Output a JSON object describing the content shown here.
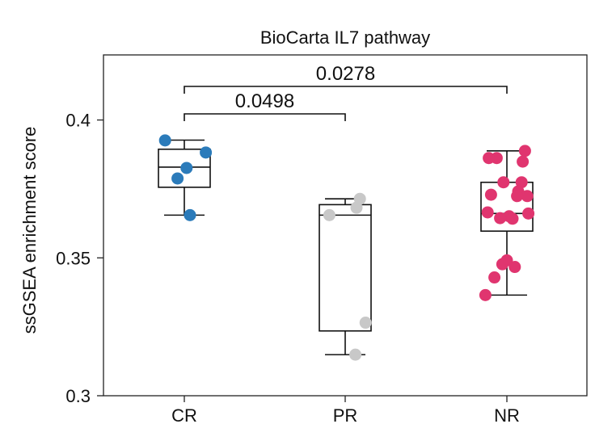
{
  "chart_data": {
    "type": "box",
    "title": "BioCarta IL7 pathway",
    "xlabel": "",
    "ylabel": "ssGSEA enrichment score",
    "ylim": [
      0.3,
      0.4236
    ],
    "yticks": [
      {
        "value": 0.3,
        "label": "0.3"
      },
      {
        "value": 0.35,
        "label": "0.35"
      },
      {
        "value": 0.4,
        "label": "0.4"
      }
    ],
    "categories": [
      "CR",
      "PR",
      "NR"
    ],
    "grid": false,
    "legend": "none",
    "groups": [
      {
        "name": "CR",
        "color": "#2b7bba",
        "box": {
          "whisker_low": 0.3655,
          "q1": 0.3756,
          "median": 0.3829,
          "q3": 0.3894,
          "whisker_high": 0.3927
        },
        "points": [
          0.3926,
          0.3882,
          0.3826,
          0.3788,
          0.3655
        ]
      },
      {
        "name": "PR",
        "color": "#c8c8c8",
        "box": {
          "whisker_low": 0.3149,
          "q1": 0.3235,
          "median": 0.3655,
          "q3": 0.3693,
          "whisker_high": 0.3714
        },
        "points": [
          0.3714,
          0.3682,
          0.3655,
          0.3265,
          0.3149
        ]
      },
      {
        "name": "NR",
        "color": "#e0356f",
        "box": {
          "whisker_low": 0.3365,
          "q1": 0.3597,
          "median": 0.3661,
          "q3": 0.3774,
          "whisker_high": 0.3888
        },
        "points": [
          0.3888,
          0.3862,
          0.3862,
          0.3849,
          0.3774,
          0.3774,
          0.3741,
          0.3729,
          0.3724,
          0.3724,
          0.3665,
          0.3661,
          0.3651,
          0.3644,
          0.3642,
          0.3491,
          0.3477,
          0.3467,
          0.3429,
          0.3365
        ]
      }
    ],
    "comparisons": [
      {
        "from": "CR",
        "to": "PR",
        "label": "0.0498"
      },
      {
        "from": "CR",
        "to": "NR",
        "label": "0.0278"
      }
    ]
  }
}
